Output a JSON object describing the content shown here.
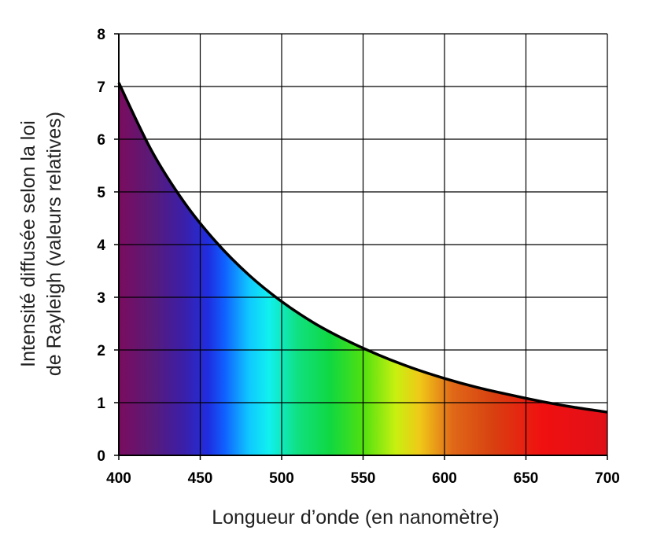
{
  "chart_data": {
    "type": "area",
    "title": "",
    "xlabel": "Longueur d’onde (en nanomètre)",
    "ylabel_lines": [
      "Intensité diffusée selon la loi",
      "de Rayleigh (valeurs relatives)"
    ],
    "xlim": [
      400,
      700
    ],
    "ylim": [
      0,
      8
    ],
    "x_ticks": [
      400,
      450,
      500,
      550,
      600,
      650,
      700
    ],
    "y_ticks": [
      0,
      1,
      2,
      3,
      4,
      5,
      6,
      7,
      8
    ],
    "grid": true,
    "legend": "none",
    "series": [
      {
        "x": [
          400,
          420,
          440,
          460,
          480,
          500,
          520,
          540,
          560,
          580,
          600,
          620,
          640,
          660,
          680,
          700
        ],
        "y": [
          7.07,
          5.79,
          4.81,
          4.04,
          3.42,
          2.92,
          2.51,
          2.18,
          1.9,
          1.66,
          1.46,
          1.29,
          1.15,
          1.02,
          0.91,
          0.82
        ]
      }
    ],
    "fill_gradient": [
      {
        "x": 400,
        "color": "#7a0c5e"
      },
      {
        "x": 420,
        "color": "#5a1a78"
      },
      {
        "x": 440,
        "color": "#3a1fa8"
      },
      {
        "x": 455,
        "color": "#1f2ee0"
      },
      {
        "x": 465,
        "color": "#1060ff"
      },
      {
        "x": 480,
        "color": "#10c8ff"
      },
      {
        "x": 492,
        "color": "#10f0f0"
      },
      {
        "x": 510,
        "color": "#10e080"
      },
      {
        "x": 530,
        "color": "#10d840"
      },
      {
        "x": 550,
        "color": "#50e010"
      },
      {
        "x": 570,
        "color": "#c8f010"
      },
      {
        "x": 585,
        "color": "#f0c818"
      },
      {
        "x": 605,
        "color": "#e06818"
      },
      {
        "x": 630,
        "color": "#d84010"
      },
      {
        "x": 660,
        "color": "#f01010"
      },
      {
        "x": 700,
        "color": "#e01018"
      }
    ],
    "curve_color": "#000000",
    "grid_color": "#000000"
  }
}
